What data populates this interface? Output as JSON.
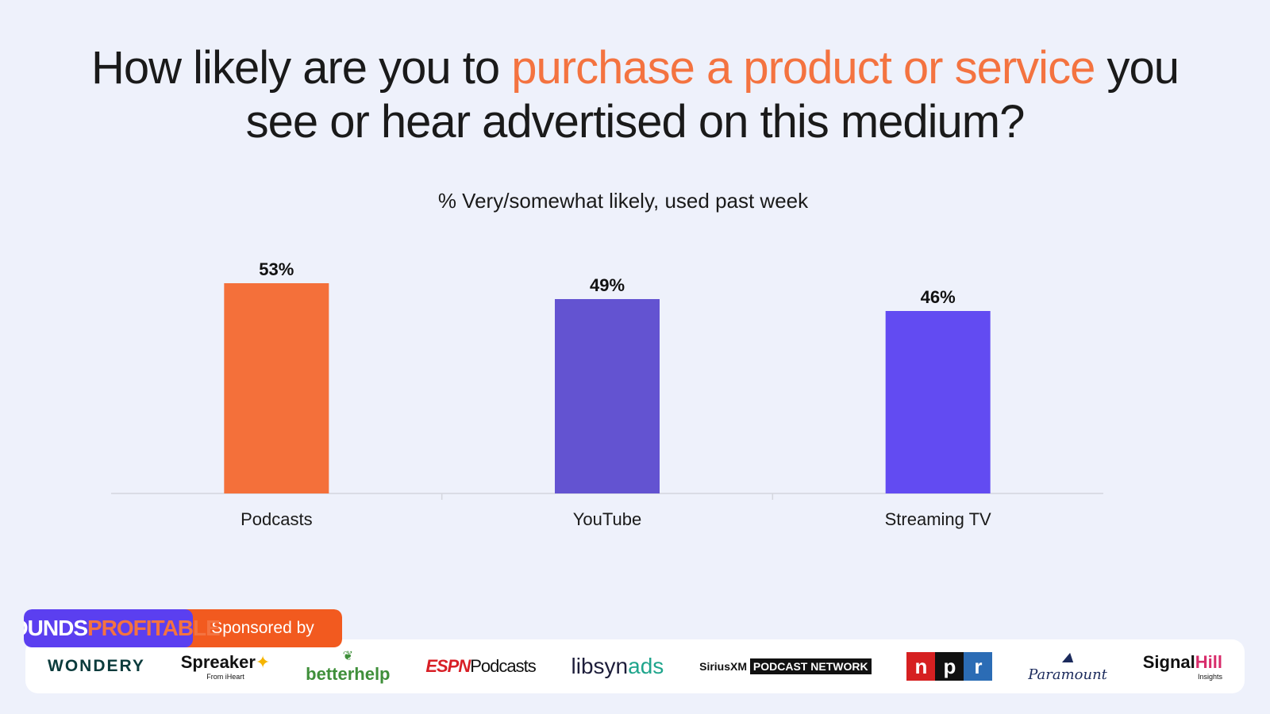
{
  "title": {
    "part1": "How likely are you to ",
    "highlight": "purchase a product or service",
    "part2": " you see or hear advertised on this medium?"
  },
  "subtitle": "% Very/somewhat likely, used past week",
  "chart_data": {
    "type": "bar",
    "title": "How likely are you to purchase a product or service you see or hear advertised on this medium?",
    "subtitle": "% Very/somewhat likely, used past week",
    "categories": [
      "Podcasts",
      "YouTube",
      "Streaming TV"
    ],
    "values": [
      53,
      49,
      46
    ],
    "value_labels": [
      "53%",
      "49%",
      "46%"
    ],
    "colors": [
      "#f4703a",
      "#6353d1",
      "#624bf2"
    ],
    "xlabel": "",
    "ylabel": "",
    "ylim": [
      0,
      60
    ],
    "grid": false,
    "legend": "none"
  },
  "footer": {
    "brand_part1": "SOUNDS",
    "brand_part2": "PROFITABLE",
    "sponsored_label": "Sponsored by",
    "sponsors": {
      "wondery": "WONDERY",
      "spreaker": "Spreaker",
      "spreaker_sub": "From iHeart",
      "betterhelp": "betterhelp",
      "espn": "ESPN",
      "espn_podcasts": "Podcasts",
      "libsyn": "libsyn",
      "libsyn_ads": "ads",
      "sirius": "SiriusXM",
      "sirius_box": "PODCAST NETWORK",
      "npr_n": "n",
      "npr_p": "p",
      "npr_r": "r",
      "paramount": "Paramount",
      "signal": "Signal",
      "signal_hill": "Hill",
      "signal_sub": "Insights"
    }
  }
}
